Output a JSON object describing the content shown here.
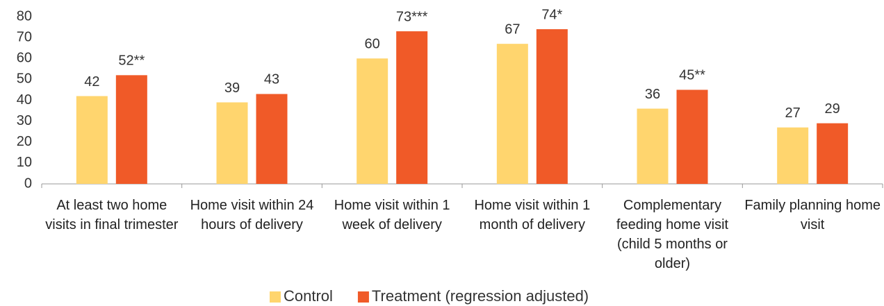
{
  "chart_data": {
    "type": "bar",
    "categories": [
      "At least two home visits in final trimester",
      "Home visit within 24 hours of delivery",
      "Home visit within 1 week of delivery",
      "Home visit within 1 month of delivery",
      "Complementary feeding home visit (child 5 months or older)",
      "Family planning home visit"
    ],
    "series": [
      {
        "name": "Control",
        "color": "#ffd56e",
        "values": [
          42,
          39,
          60,
          67,
          36,
          27
        ]
      },
      {
        "name": "Treatment (regression adjusted)",
        "color": "#f05a28",
        "values": [
          52,
          43,
          73,
          74,
          45,
          29
        ],
        "value_labels": [
          "52**",
          "43",
          "73***",
          "74*",
          "45**",
          "29"
        ]
      }
    ],
    "ylim": [
      0,
      80
    ],
    "yticks": [
      0,
      10,
      20,
      30,
      40,
      50,
      60,
      70,
      80
    ],
    "grid": false,
    "legend": "bottom"
  }
}
